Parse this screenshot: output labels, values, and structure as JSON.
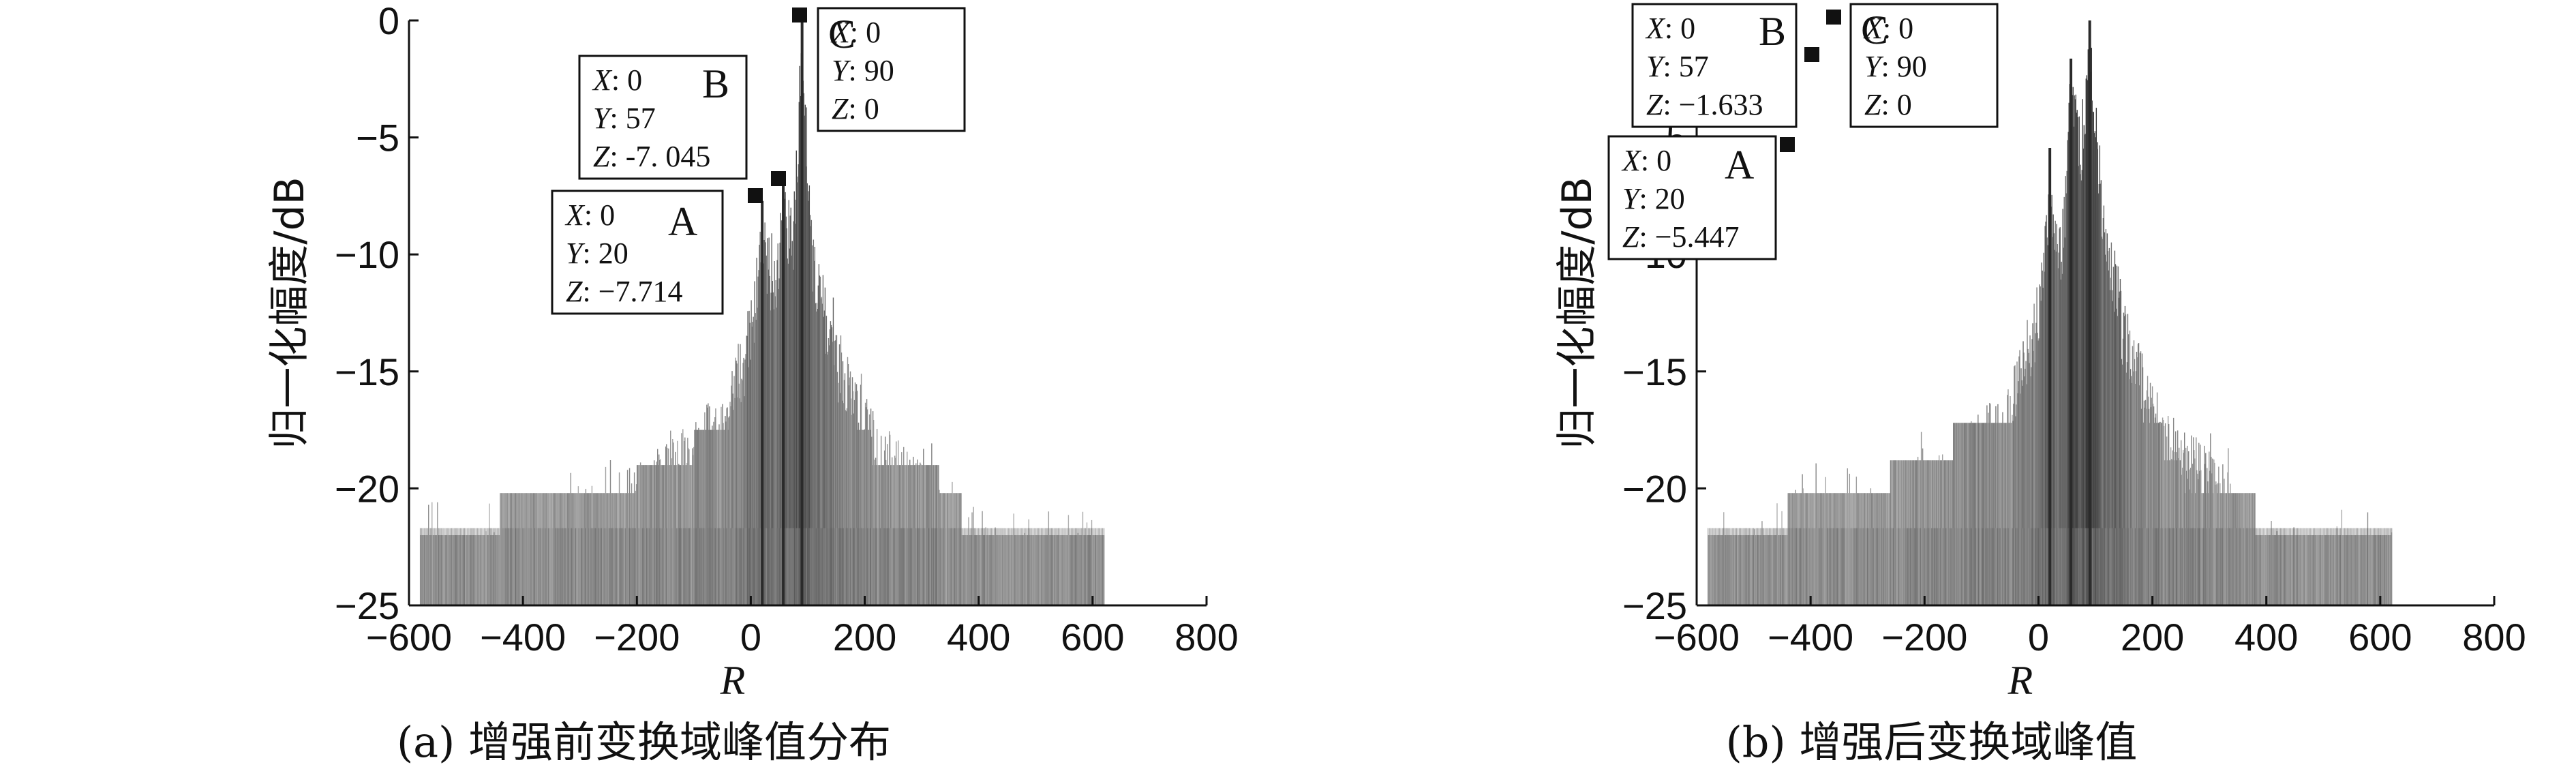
{
  "chart_data": [
    {
      "type": "area",
      "panel_id": "a",
      "caption": "(a) 增强前变换域峰值分布",
      "xlabel": "R",
      "ylabel": "归一化幅度/dB",
      "xlim": [
        -600,
        800
      ],
      "ylim": [
        -25,
        0
      ],
      "xticks": [
        -600,
        -400,
        -200,
        0,
        200,
        400,
        600,
        800
      ],
      "yticks": [
        0,
        -5,
        -10,
        -15,
        -20,
        -25
      ],
      "grid": false,
      "legend": "none",
      "peaks": [
        {
          "label": "A",
          "x": 0,
          "y": 20,
          "z": -7.714,
          "r": 20,
          "text": {
            "x": "0",
            "y": "20",
            "z": "−7.714"
          }
        },
        {
          "label": "B",
          "x": 0,
          "y": 57,
          "z": -7.045,
          "r": 57,
          "text": {
            "x": "0",
            "y": "57",
            "z": "-7. 045"
          }
        },
        {
          "label": "C",
          "x": 0,
          "y": 90,
          "z": 0,
          "r": 90,
          "text": {
            "x": "0",
            "y": "90",
            "z": "0"
          }
        }
      ],
      "spectrum": {
        "support": [
          -580,
          620
        ],
        "noise_floor": -22,
        "step_levels": [
          {
            "from": -580,
            "to": 620,
            "level": -22
          },
          {
            "from": -440,
            "to": 370,
            "level": -20.2
          },
          {
            "from": -200,
            "to": 330,
            "level": -19
          },
          {
            "from": -100,
            "to": 210,
            "level": -17.5
          }
        ],
        "peak_envelope": [
          {
            "r": -200,
            "level": -19
          },
          {
            "r": -50,
            "level": -16
          },
          {
            "r": 0,
            "level": -12
          },
          {
            "r": 20,
            "level": -7.714
          },
          {
            "r": 40,
            "level": -10
          },
          {
            "r": 57,
            "level": -7.045
          },
          {
            "r": 75,
            "level": -7.5
          },
          {
            "r": 90,
            "level": 0
          },
          {
            "r": 110,
            "level": -9
          },
          {
            "r": 150,
            "level": -13
          },
          {
            "r": 220,
            "level": -17
          },
          {
            "r": 330,
            "level": -19.5
          }
        ]
      }
    },
    {
      "type": "area",
      "panel_id": "b",
      "caption": "(b) 增强后变换域峰值",
      "xlabel": "R",
      "ylabel": "归一化幅度/dB",
      "xlim": [
        -600,
        800
      ],
      "ylim": [
        -25,
        0
      ],
      "xticks": [
        -600,
        -400,
        -200,
        0,
        200,
        400,
        600,
        800
      ],
      "yticks": [
        0,
        -5,
        -10,
        -15,
        -20,
        -25
      ],
      "grid": false,
      "legend": "none",
      "peaks": [
        {
          "label": "A",
          "x": 0,
          "y": 20,
          "z": -5.447,
          "r": 20,
          "text": {
            "x": "0",
            "y": "20",
            "z": "−5.447"
          }
        },
        {
          "label": "B",
          "x": 0,
          "y": 57,
          "z": -1.633,
          "r": 57,
          "text": {
            "x": "0",
            "y": "57",
            "z": "−1.633"
          }
        },
        {
          "label": "C",
          "x": 0,
          "y": 90,
          "z": 0,
          "r": 90,
          "text": {
            "x": "0",
            "y": "90",
            "z": "0"
          }
        }
      ],
      "spectrum": {
        "support": [
          -580,
          620
        ],
        "noise_floor": -22,
        "step_levels": [
          {
            "from": -580,
            "to": 620,
            "level": -22
          },
          {
            "from": -440,
            "to": 380,
            "level": -20.2
          },
          {
            "from": -260,
            "to": 250,
            "level": -18.8
          },
          {
            "from": -150,
            "to": 220,
            "level": -17.2
          }
        ],
        "peak_envelope": [
          {
            "r": -200,
            "level": -19
          },
          {
            "r": -50,
            "level": -15.5
          },
          {
            "r": 0,
            "level": -11
          },
          {
            "r": 20,
            "level": -5.447
          },
          {
            "r": 40,
            "level": -9
          },
          {
            "r": 57,
            "level": -1.633
          },
          {
            "r": 75,
            "level": -4
          },
          {
            "r": 90,
            "level": 0
          },
          {
            "r": 110,
            "level": -6
          },
          {
            "r": 150,
            "level": -12
          },
          {
            "r": 220,
            "level": -16.5
          },
          {
            "r": 330,
            "level": -19
          }
        ]
      }
    }
  ]
}
